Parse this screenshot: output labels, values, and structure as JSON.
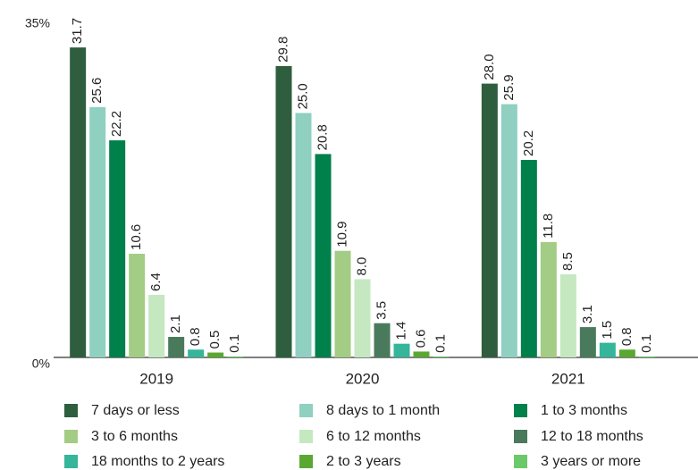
{
  "chart_data": {
    "type": "bar",
    "categories": [
      "2019",
      "2020",
      "2021"
    ],
    "ylim": [
      0,
      35
    ],
    "yticks": [
      {
        "value": 0,
        "label": "0%"
      },
      {
        "value": 35,
        "label": "35%"
      }
    ],
    "series": [
      {
        "name": "7 days or less",
        "color": "#2e5e3e",
        "values": [
          31.7,
          29.8,
          28.0
        ],
        "value_labels": [
          "31.7",
          "29.8",
          "28.0"
        ]
      },
      {
        "name": "8 days to 1 month",
        "color": "#8fd0c0",
        "values": [
          25.6,
          25.0,
          25.9
        ],
        "value_labels": [
          "25.6",
          "25.0",
          "25.9"
        ]
      },
      {
        "name": "1 to 3 months",
        "color": "#00804a",
        "values": [
          22.2,
          20.8,
          20.2
        ]
      },
      {
        "name": "3 to 6 months",
        "color": "#a3cc85",
        "values": [
          10.6,
          10.9,
          11.8
        ]
      },
      {
        "name": "6 to 12 months",
        "color": "#c5e8c0",
        "values": [
          6.4,
          8.0,
          8.5
        ],
        "value_labels": [
          "6.4",
          "8.0",
          "8.5"
        ]
      },
      {
        "name": "12 to 18 months",
        "color": "#4a7a5c",
        "values": [
          2.1,
          3.5,
          3.1
        ]
      },
      {
        "name": "18 months to 2 years",
        "color": "#35b59a",
        "values": [
          0.8,
          1.4,
          1.5
        ]
      },
      {
        "name": "2 to 3 years",
        "color": "#5aa832",
        "values": [
          0.5,
          0.6,
          0.8
        ]
      },
      {
        "name": "3 years or more",
        "color": "#6cc96a",
        "values": [
          0.1,
          0.1,
          0.1
        ]
      }
    ]
  }
}
